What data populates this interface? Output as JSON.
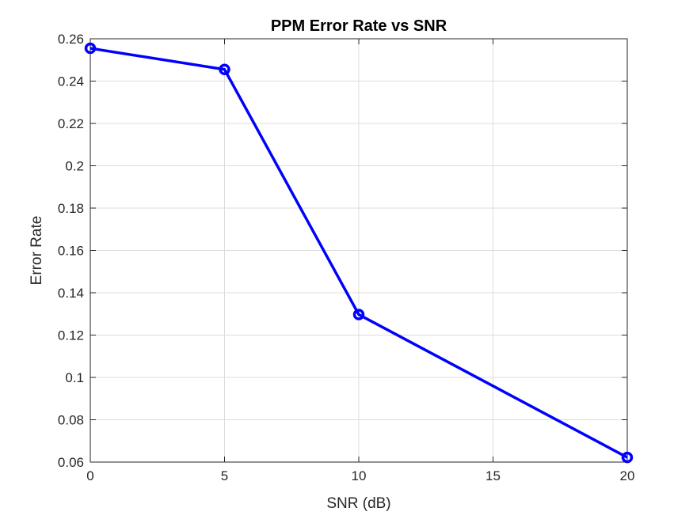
{
  "chart_data": {
    "type": "line",
    "title": "PPM Error Rate vs SNR",
    "xlabel": "SNR (dB)",
    "ylabel": "Error Rate",
    "xlim": [
      0,
      20
    ],
    "ylim": [
      0.06,
      0.26
    ],
    "xticks": [
      "0",
      "5",
      "10",
      "15",
      "20"
    ],
    "yticks": [
      "0.06",
      "0.08",
      "0.1",
      "0.12",
      "0.14",
      "0.16",
      "0.18",
      "0.2",
      "0.22",
      "0.24",
      "0.26"
    ],
    "grid": true,
    "series": [
      {
        "x": [
          0,
          5,
          10,
          20
        ],
        "y": [
          0.2555,
          0.2455,
          0.1297,
          0.0622
        ],
        "color": "#0000ff",
        "marker": "circle"
      }
    ]
  }
}
